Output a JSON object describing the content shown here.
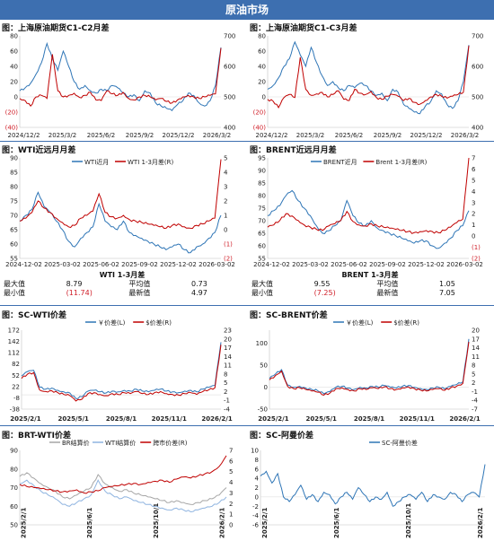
{
  "header": {
    "title": "原油市场"
  },
  "panels": [
    {
      "title": "图：上海原油期货C1-C2月差"
    },
    {
      "title": "图：上海原油期货C1-C3月差"
    },
    {
      "title": "图：WTI近远月月差"
    },
    {
      "title": "图：BRENT近远月月差"
    },
    {
      "title": "图：SC-WTI价差"
    },
    {
      "title": "图：SC-BRENT价差"
    },
    {
      "title": "图：BRT-WTI价差"
    },
    {
      "title": "图：SC-阿曼价差"
    }
  ],
  "stats": {
    "wti": {
      "title": "WTI 1-3月差",
      "max_label": "最大值",
      "max": "8.79",
      "avg_label": "平均值",
      "avg": "0.73",
      "min_label": "最小值",
      "min": "(11.74)",
      "latest_label": "最新值",
      "latest": "4.97"
    },
    "brent": {
      "title": "BRENT 1-3月差",
      "max_label": "最大值",
      "max": "9.55",
      "avg_label": "平均值",
      "avg": "1.05",
      "min_label": "最小值",
      "min": "(7.25)",
      "latest_label": "最新值",
      "latest": "7.05"
    }
  },
  "colors": {
    "blue": "#2e75b6",
    "red": "#c00000",
    "gray": "#a6a6a6",
    "lightblue": "#8fb4e0",
    "header": "#3d6fb0"
  },
  "chart_data": [
    {
      "type": "line",
      "x_ticks": [
        "2024/12/2",
        "2025/3/2",
        "2025/6/2",
        "2025/9/2",
        "2025/12/2",
        "2026/3/2"
      ],
      "y_left_ticks": [
        "80",
        "60",
        "40",
        "20",
        "0",
        "(20)",
        "(40)"
      ],
      "y_right_ticks": [
        "700",
        "600",
        "500",
        "400"
      ],
      "ylim_left": [
        -40,
        80
      ],
      "ylim_right": [
        400,
        700
      ],
      "series": [
        {
          "axis": "left",
          "color": "#2e75b6",
          "values": [
            8,
            12,
            18,
            30,
            45,
            70,
            50,
            35,
            60,
            40,
            20,
            10,
            15,
            8,
            5,
            10,
            8,
            15,
            12,
            5,
            0,
            3,
            -5,
            8,
            5,
            -8,
            -12,
            -15,
            -18,
            -10,
            -5,
            5,
            2,
            -8,
            -12,
            -5,
            15,
            65
          ]
        },
        {
          "axis": "right",
          "color": "#c00000",
          "values": [
            495,
            488,
            470,
            500,
            505,
            495,
            640,
            520,
            500,
            505,
            512,
            498,
            505,
            515,
            490,
            488,
            520,
            510,
            505,
            515,
            495,
            490,
            500,
            505,
            500,
            490,
            495,
            485,
            480,
            490,
            500,
            505,
            500,
            495,
            500,
            505,
            510,
            660
          ]
        }
      ]
    },
    {
      "type": "line",
      "x_ticks": [
        "2024/12/2",
        "2025/3/2",
        "2025/6/2",
        "2025/9/2",
        "2025/12/2",
        "2026/3/2"
      ],
      "y_left_ticks": [
        "80",
        "60",
        "40",
        "20",
        "0",
        "(20)",
        "(40)"
      ],
      "y_right_ticks": [
        "700",
        "600",
        "500",
        "400"
      ],
      "ylim_left": [
        -40,
        80
      ],
      "ylim_right": [
        400,
        700
      ],
      "series": [
        {
          "axis": "left",
          "color": "#2e75b6",
          "values": [
            10,
            15,
            25,
            40,
            50,
            72,
            55,
            40,
            65,
            45,
            28,
            15,
            20,
            12,
            8,
            15,
            12,
            18,
            15,
            8,
            2,
            5,
            -5,
            10,
            6,
            -10,
            -15,
            -20,
            -22,
            -12,
            -6,
            8,
            4,
            -10,
            -15,
            -5,
            20,
            68
          ]
        },
        {
          "axis": "right",
          "color": "#c00000",
          "values": [
            492,
            486,
            465,
            498,
            508,
            498,
            630,
            525,
            505,
            510,
            515,
            500,
            508,
            520,
            492,
            488,
            525,
            512,
            508,
            518,
            498,
            492,
            502,
            508,
            502,
            488,
            495,
            482,
            476,
            488,
            500,
            508,
            502,
            496,
            502,
            508,
            515,
            668
          ]
        }
      ]
    },
    {
      "type": "line",
      "legend": [
        "WTI近月",
        "WTI 1-3月差(R)"
      ],
      "x_ticks": [
        "2024-12-02",
        "2025-03-02",
        "2025-06-02",
        "2025-09-02",
        "2025-12-02",
        "2026-03-02"
      ],
      "y_left_ticks": [
        "90",
        "85",
        "80",
        "75",
        "70",
        "65",
        "60",
        "55"
      ],
      "y_right_ticks": [
        "5",
        "4",
        "3",
        "2",
        "1",
        "0",
        "(1)",
        "(2)"
      ],
      "ylim_left": [
        55,
        90
      ],
      "ylim_right": [
        -2,
        5
      ],
      "series": [
        {
          "name": "WTI近月",
          "axis": "left",
          "color": "#2e75b6",
          "values": [
            68,
            70,
            72,
            78,
            73,
            71,
            68,
            65,
            61,
            59,
            62,
            64,
            66,
            74,
            68,
            66,
            65,
            68,
            64,
            63,
            62,
            61,
            60,
            59,
            58,
            59,
            60,
            58,
            57,
            59,
            60,
            62,
            64,
            70
          ]
        },
        {
          "name": "WTI 1-3月差(R)",
          "axis": "right",
          "color": "#c00000",
          "values": [
            0.6,
            0.8,
            1.2,
            2.0,
            1.5,
            1.2,
            0.8,
            0.5,
            0.2,
            0.3,
            0.8,
            1.0,
            1.3,
            2.5,
            1.2,
            0.9,
            0.8,
            1.0,
            0.7,
            0.6,
            0.5,
            0.4,
            0.3,
            0.2,
            0.1,
            0.3,
            0.4,
            0.2,
            0.1,
            0.3,
            0.4,
            0.6,
            0.8,
            4.9
          ]
        }
      ]
    },
    {
      "type": "line",
      "legend": [
        "BRENT近月",
        "Brent 1-3月差(R)"
      ],
      "x_ticks": [
        "2024-12-02",
        "2025-03-02",
        "2025-06-02",
        "2025-09-02",
        "2025-12-02",
        "2026-03-02"
      ],
      "y_left_ticks": [
        "95",
        "90",
        "85",
        "80",
        "75",
        "70",
        "65",
        "60",
        "55"
      ],
      "y_right_ticks": [
        "7",
        "6",
        "5",
        "4",
        "3",
        "2",
        "1",
        "0",
        "(1)",
        "(2)"
      ],
      "ylim_left": [
        55,
        95
      ],
      "ylim_right": [
        -2,
        7
      ],
      "series": [
        {
          "name": "BRENT近月",
          "axis": "left",
          "color": "#2e75b6",
          "values": [
            72,
            74,
            76,
            80,
            82,
            78,
            75,
            72,
            68,
            65,
            66,
            68,
            70,
            78,
            72,
            69,
            68,
            70,
            67,
            66,
            65,
            64,
            63,
            62,
            61,
            62,
            62,
            60,
            59,
            61,
            63,
            66,
            68,
            74
          ]
        },
        {
          "name": "Brent 1-3月差(R)",
          "axis": "right",
          "color": "#c00000",
          "values": [
            0.8,
            1.0,
            1.4,
            2.0,
            1.8,
            1.4,
            1.0,
            0.8,
            0.6,
            0.5,
            0.9,
            1.1,
            1.4,
            2.2,
            1.3,
            1.0,
            0.9,
            1.1,
            0.9,
            0.8,
            0.7,
            0.6,
            0.5,
            0.4,
            0.3,
            0.4,
            0.5,
            0.4,
            0.3,
            0.5,
            0.8,
            1.2,
            1.5,
            7.0
          ]
        }
      ]
    },
    {
      "type": "line",
      "legend": [
        "￥价差(L)",
        "$价差(R)"
      ],
      "x_ticks": [
        "2025/2/1",
        "2025/5/1",
        "2025/8/1",
        "2025/11/1",
        "2026/2/1"
      ],
      "y_left_ticks": [
        "172",
        "142",
        "112",
        "82",
        "52",
        "22",
        "-8",
        "-38"
      ],
      "y_right_ticks": [
        "23",
        "20",
        "17",
        "14",
        "11",
        "8",
        "5",
        "2",
        "-1",
        "-4"
      ],
      "ylim_left": [
        -38,
        172
      ],
      "ylim_right": [
        -4,
        23
      ],
      "series": [
        {
          "name": "￥价差(L)",
          "axis": "left",
          "color": "#2e75b6",
          "values": [
            50,
            62,
            65,
            20,
            15,
            18,
            12,
            8,
            5,
            -10,
            -5,
            10,
            12,
            8,
            5,
            10,
            8,
            12,
            10,
            15,
            10,
            8,
            12,
            15,
            10,
            8,
            6,
            10,
            12,
            8,
            15,
            20,
            25,
            140
          ]
        },
        {
          "name": "$价差(R)",
          "axis": "right",
          "color": "#c00000",
          "values": [
            6.5,
            8,
            8.5,
            2.5,
            2,
            2.3,
            1.6,
            1,
            0.6,
            -1.2,
            -0.6,
            1.3,
            1.6,
            1,
            0.6,
            1.3,
            1,
            1.6,
            1.3,
            2,
            1.3,
            1,
            1.6,
            2,
            1.3,
            1,
            0.8,
            1.3,
            1.6,
            1,
            2,
            2.6,
            3.3,
            18
          ]
        }
      ]
    },
    {
      "type": "line",
      "legend": [
        "￥价差(L)",
        "$价差(R)"
      ],
      "x_ticks": [
        "2025/2/1",
        "2025/5/1",
        "2025/8/1",
        "2025/11/1",
        "2026/2/1"
      ],
      "y_left_ticks": [
        "100",
        "50",
        "0",
        "-50"
      ],
      "y_right_ticks": [
        "20",
        "17",
        "14",
        "11",
        "8",
        "5",
        "2",
        "-1",
        "-4",
        "-7"
      ],
      "ylim_left": [
        -50,
        130
      ],
      "ylim_right": [
        -7,
        20
      ],
      "series": [
        {
          "name": "￥价差(L)",
          "axis": "left",
          "color": "#2e75b6",
          "values": [
            20,
            30,
            40,
            5,
            0,
            2,
            -2,
            -5,
            -8,
            -15,
            -10,
            0,
            2,
            -2,
            -5,
            0,
            -2,
            2,
            0,
            4,
            0,
            -2,
            2,
            4,
            0,
            -3,
            -5,
            -2,
            0,
            -4,
            2,
            6,
            12,
            110
          ]
        },
        {
          "name": "$价差(R)",
          "axis": "right",
          "color": "#c00000",
          "values": [
            3,
            4.5,
            6,
            0.8,
            0,
            0.3,
            -0.3,
            -0.8,
            -1.2,
            -2.2,
            -1.5,
            0,
            0.3,
            -0.3,
            -0.8,
            0,
            -0.3,
            0.3,
            0,
            0.6,
            0,
            -0.3,
            0.3,
            0.6,
            0,
            -0.5,
            -0.8,
            -0.3,
            0,
            -0.6,
            0.3,
            0.9,
            1.8,
            16
          ]
        }
      ]
    },
    {
      "type": "line",
      "legend": [
        "BR结算价",
        "WTI结算价",
        "跨市价差(R)"
      ],
      "x_ticks": [
        "2025/2/1",
        "2025/6/1",
        "2025/10/1",
        "2026/2/1"
      ],
      "y_left_ticks": [
        "90",
        "80",
        "70",
        "60",
        "50"
      ],
      "y_right_ticks": [
        "7",
        "6",
        "5",
        "4",
        "3",
        "2",
        "1",
        "0"
      ],
      "ylim_left": [
        50,
        90
      ],
      "ylim_right": [
        0,
        7
      ],
      "series": [
        {
          "name": "BR结算价",
          "axis": "left",
          "color": "#a6a6a6",
          "values": [
            76,
            78,
            75,
            72,
            70,
            68,
            65,
            64,
            66,
            68,
            70,
            77,
            72,
            70,
            68,
            69,
            67,
            66,
            65,
            64,
            63,
            62,
            63,
            62,
            61,
            62,
            63,
            64,
            66,
            70
          ]
        },
        {
          "name": "WTI结算价",
          "axis": "left",
          "color": "#8fb4e0",
          "values": [
            72,
            74,
            71,
            68,
            66,
            64,
            61,
            60,
            62,
            64,
            66,
            74,
            68,
            66,
            64,
            65,
            63,
            62,
            61,
            60,
            59,
            58,
            59,
            58,
            57,
            58,
            59,
            60,
            62,
            65
          ]
        },
        {
          "name": "跨市价差(R)",
          "axis": "right",
          "color": "#c00000",
          "values": [
            3.8,
            3.6,
            3.5,
            3.4,
            3.3,
            3.2,
            3.1,
            3.2,
            3.3,
            3.0,
            3.1,
            3.2,
            3.5,
            3.6,
            3.7,
            3.8,
            3.9,
            3.8,
            4.0,
            4.1,
            4.2,
            4.0,
            4.3,
            4.5,
            4.4,
            4.6,
            4.8,
            5.0,
            5.5,
            6.5
          ]
        }
      ]
    },
    {
      "type": "line",
      "legend": [
        "SC-阿曼价差"
      ],
      "x_ticks": [
        "2025/2/1",
        "2025/6/1",
        "2025/10/1",
        "2026/2/1"
      ],
      "y_left_ticks": [
        "10",
        "8",
        "6",
        "4",
        "2",
        "0",
        "-2",
        "-4",
        "-6"
      ],
      "ylim_left": [
        -6,
        10
      ],
      "series": [
        {
          "name": "SC-阿曼价差",
          "axis": "left",
          "color": "#2e75b6",
          "values": [
            4.5,
            5.5,
            3,
            5,
            0,
            -1,
            0.5,
            2.5,
            -0.5,
            0.5,
            -1,
            1,
            0.5,
            -1.5,
            0,
            1,
            -0.5,
            2,
            0.5,
            -1,
            0,
            -0.5,
            1,
            -2,
            -1,
            0,
            0.5,
            -0.5,
            1,
            -1,
            0.5,
            0,
            -0.5,
            1,
            0.5,
            -1,
            0.5,
            1,
            0,
            7
          ]
        }
      ]
    }
  ]
}
